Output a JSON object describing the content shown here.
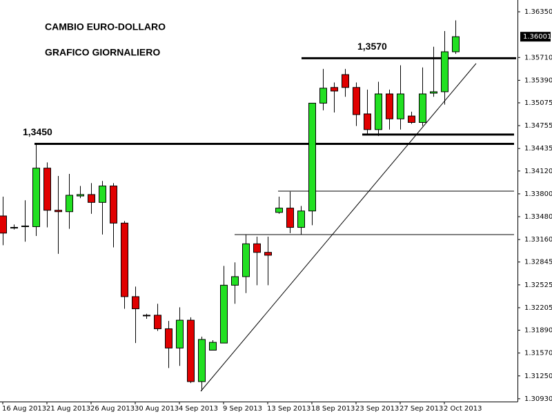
{
  "chart_data": {
    "type": "candlestick",
    "title": "CAMBIO EURO-DOLLARO",
    "subtitle": "GRAFICO GIORNALIERO",
    "categories": [
      "16 Aug 2013",
      null,
      null,
      null,
      "21 Aug 2013",
      null,
      null,
      null,
      "26 Aug 2013",
      null,
      null,
      null,
      "30 Aug 2013",
      null,
      null,
      null,
      "4 Sep 2013",
      null,
      null,
      null,
      "9 Sep 2013",
      null,
      null,
      null,
      "13 Sep 2013",
      null,
      null,
      null,
      "18 Sep 2013",
      null,
      null,
      null,
      "23 Sep 2013",
      null,
      null,
      null,
      "27 Sep 2013",
      null,
      null,
      null,
      "2 Oct 2013",
      null
    ],
    "open": [
      1.3349,
      1.3332,
      1.3334,
      1.3334,
      1.3416,
      1.3357,
      1.3355,
      1.3377,
      1.3379,
      1.3368,
      1.3391,
      1.3339,
      1.3236,
      1.321,
      1.321,
      1.3191,
      1.3164,
      1.3203,
      1.3117,
      1.3161,
      1.3171,
      1.3252,
      1.3264,
      1.331,
      1.3298,
      1.3354,
      1.336,
      1.3333,
      1.3356,
      1.3507,
      1.3529,
      1.3547,
      1.3529,
      1.3492,
      1.347,
      1.352,
      1.3485,
      1.3489,
      1.348,
      1.3521,
      1.3523,
      1.3579
    ],
    "high": [
      1.3376,
      1.3337,
      1.3371,
      1.3451,
      1.3424,
      1.3405,
      1.3408,
      1.3391,
      1.3395,
      1.3398,
      1.3395,
      1.3342,
      1.325,
      1.3212,
      1.3226,
      1.3202,
      1.3221,
      1.3207,
      1.318,
      1.3175,
      1.3279,
      1.3284,
      1.3323,
      1.332,
      1.332,
      1.3376,
      1.3383,
      1.3363,
      1.3507,
      1.3555,
      1.3536,
      1.3555,
      1.3536,
      1.3526,
      1.3537,
      1.3526,
      1.356,
      1.3495,
      1.3557,
      1.3586,
      1.3608,
      1.3623
    ],
    "low": [
      1.3308,
      1.333,
      1.3313,
      1.3321,
      1.3333,
      1.3296,
      1.3331,
      1.3374,
      1.3352,
      1.3323,
      1.3305,
      1.3219,
      1.3171,
      1.3205,
      1.3188,
      1.3136,
      1.3139,
      1.3115,
      1.3104,
      1.3161,
      1.3171,
      1.3226,
      1.3241,
      1.3252,
      1.3252,
      1.3352,
      1.3325,
      1.3323,
      1.3336,
      1.3497,
      1.3494,
      1.3516,
      1.3475,
      1.3463,
      1.3461,
      1.347,
      1.347,
      1.3478,
      1.3475,
      1.3516,
      1.3505,
      1.3576
    ],
    "close": [
      1.3325,
      1.3333,
      1.3335,
      1.3416,
      1.3357,
      1.3355,
      1.3378,
      1.3379,
      1.3368,
      1.3391,
      1.3339,
      1.3236,
      1.3219,
      1.3209,
      1.3191,
      1.3164,
      1.3203,
      1.3117,
      1.3176,
      1.3172,
      1.3252,
      1.3264,
      1.331,
      1.3298,
      1.3294,
      1.336,
      1.3333,
      1.3356,
      1.3507,
      1.3528,
      1.3524,
      1.3529,
      1.3491,
      1.347,
      1.352,
      1.3485,
      1.352,
      1.348,
      1.352,
      1.3523,
      1.3579,
      1.36001
    ],
    "up_color": "#22e022",
    "down_color": "#e00000",
    "ylim": [
      1.3089,
      1.36515
    ],
    "yticks": [
      {
        "value": 1.3635,
        "label": "1.36350"
      },
      {
        "value": 1.3571,
        "label": "1.35710"
      },
      {
        "value": 1.3539,
        "label": "1.35390"
      },
      {
        "value": 1.35075,
        "label": "1.35075"
      },
      {
        "value": 1.34755,
        "label": "1.34755"
      },
      {
        "value": 1.34435,
        "label": "1.34435"
      },
      {
        "value": 1.3412,
        "label": "1.34120"
      },
      {
        "value": 1.338,
        "label": "1.33800"
      },
      {
        "value": 1.3348,
        "label": "1.33480"
      },
      {
        "value": 1.3316,
        "label": "1.33160"
      },
      {
        "value": 1.32845,
        "label": "1.32845"
      },
      {
        "value": 1.32525,
        "label": "1.32525"
      },
      {
        "value": 1.32205,
        "label": "1.32205"
      },
      {
        "value": 1.3189,
        "label": "1.31890"
      },
      {
        "value": 1.3157,
        "label": "1.31570"
      },
      {
        "value": 1.3125,
        "label": "1.31250"
      },
      {
        "value": 1.3093,
        "label": "1.30930"
      }
    ],
    "last_price": {
      "value": 1.36001,
      "label": "1.36001"
    },
    "levels": [
      {
        "value": 1.345,
        "label": "1,3450"
      },
      {
        "value": 1.357,
        "label": "1,3570"
      }
    ],
    "grid": false
  }
}
